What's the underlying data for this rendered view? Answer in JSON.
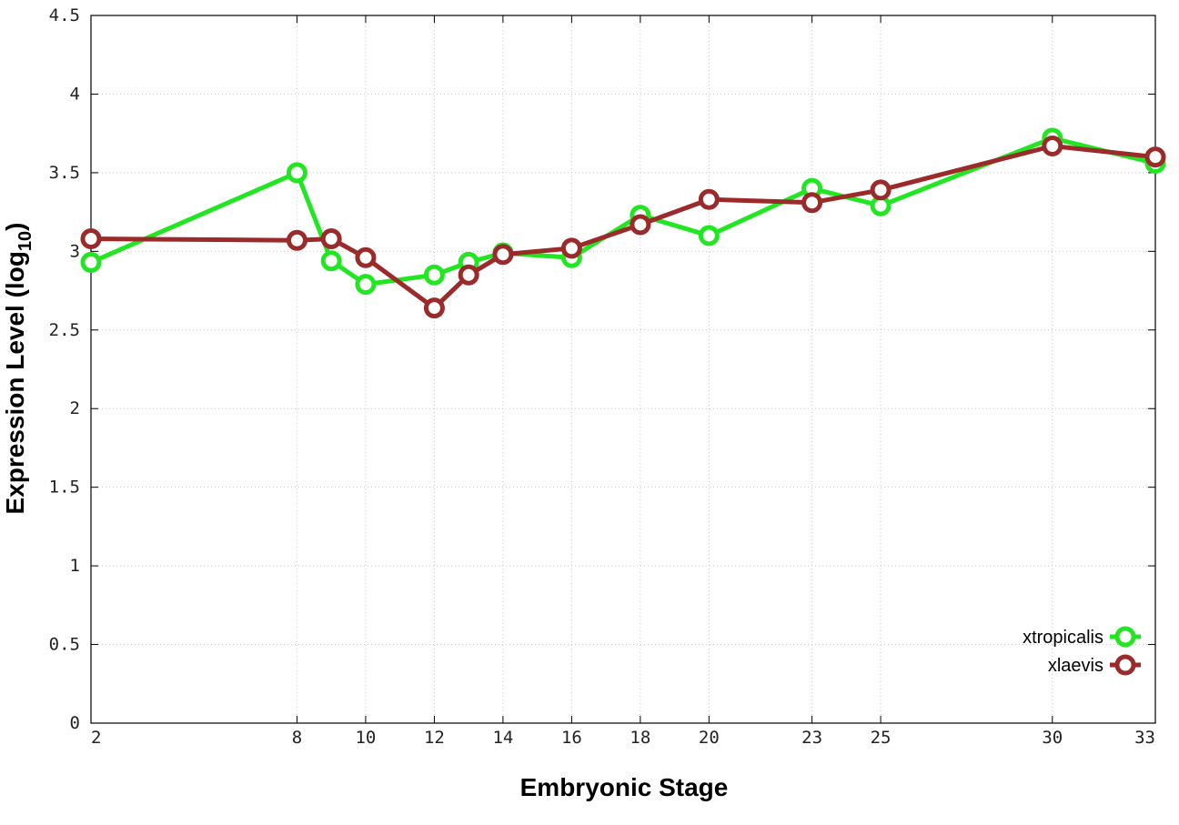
{
  "chart_data": {
    "type": "line",
    "xlabel": "Embryonic Stage",
    "ylabel_main": "Expression Level (log",
    "ylabel_sub": "10",
    "ylabel_close": ")",
    "ylim": [
      0,
      4.5
    ],
    "xlim": [
      2,
      33
    ],
    "x_ticks": [
      2,
      8,
      10,
      12,
      14,
      16,
      18,
      20,
      23,
      25,
      30,
      33
    ],
    "x_tick_labels": [
      "2",
      "8",
      "10",
      "12",
      "14",
      "16",
      "18",
      "20",
      "23",
      "25",
      "30",
      "33"
    ],
    "y_ticks": [
      0,
      0.5,
      1,
      1.5,
      2,
      2.5,
      3,
      3.5,
      4,
      4.5
    ],
    "y_tick_labels": [
      "0",
      "0.5",
      "1",
      "1.5",
      "2",
      "2.5",
      "3",
      "3.5",
      "4",
      "4.5"
    ],
    "x": [
      2,
      8,
      9,
      10,
      12,
      13,
      14,
      16,
      18,
      20,
      23,
      25,
      30,
      33
    ],
    "grid": true,
    "legend_position": "bottom-right",
    "series": [
      {
        "name": "xtropicalis",
        "color": "#22e622",
        "values": [
          2.93,
          3.5,
          2.94,
          2.79,
          2.85,
          2.93,
          2.99,
          2.96,
          3.23,
          3.1,
          3.4,
          3.29,
          3.72,
          3.56
        ]
      },
      {
        "name": "xlaevis",
        "color": "#9b2a2a",
        "values": [
          3.08,
          3.07,
          3.08,
          2.96,
          2.64,
          2.85,
          2.98,
          3.02,
          3.17,
          3.33,
          3.31,
          3.39,
          3.67,
          3.6
        ]
      }
    ]
  }
}
